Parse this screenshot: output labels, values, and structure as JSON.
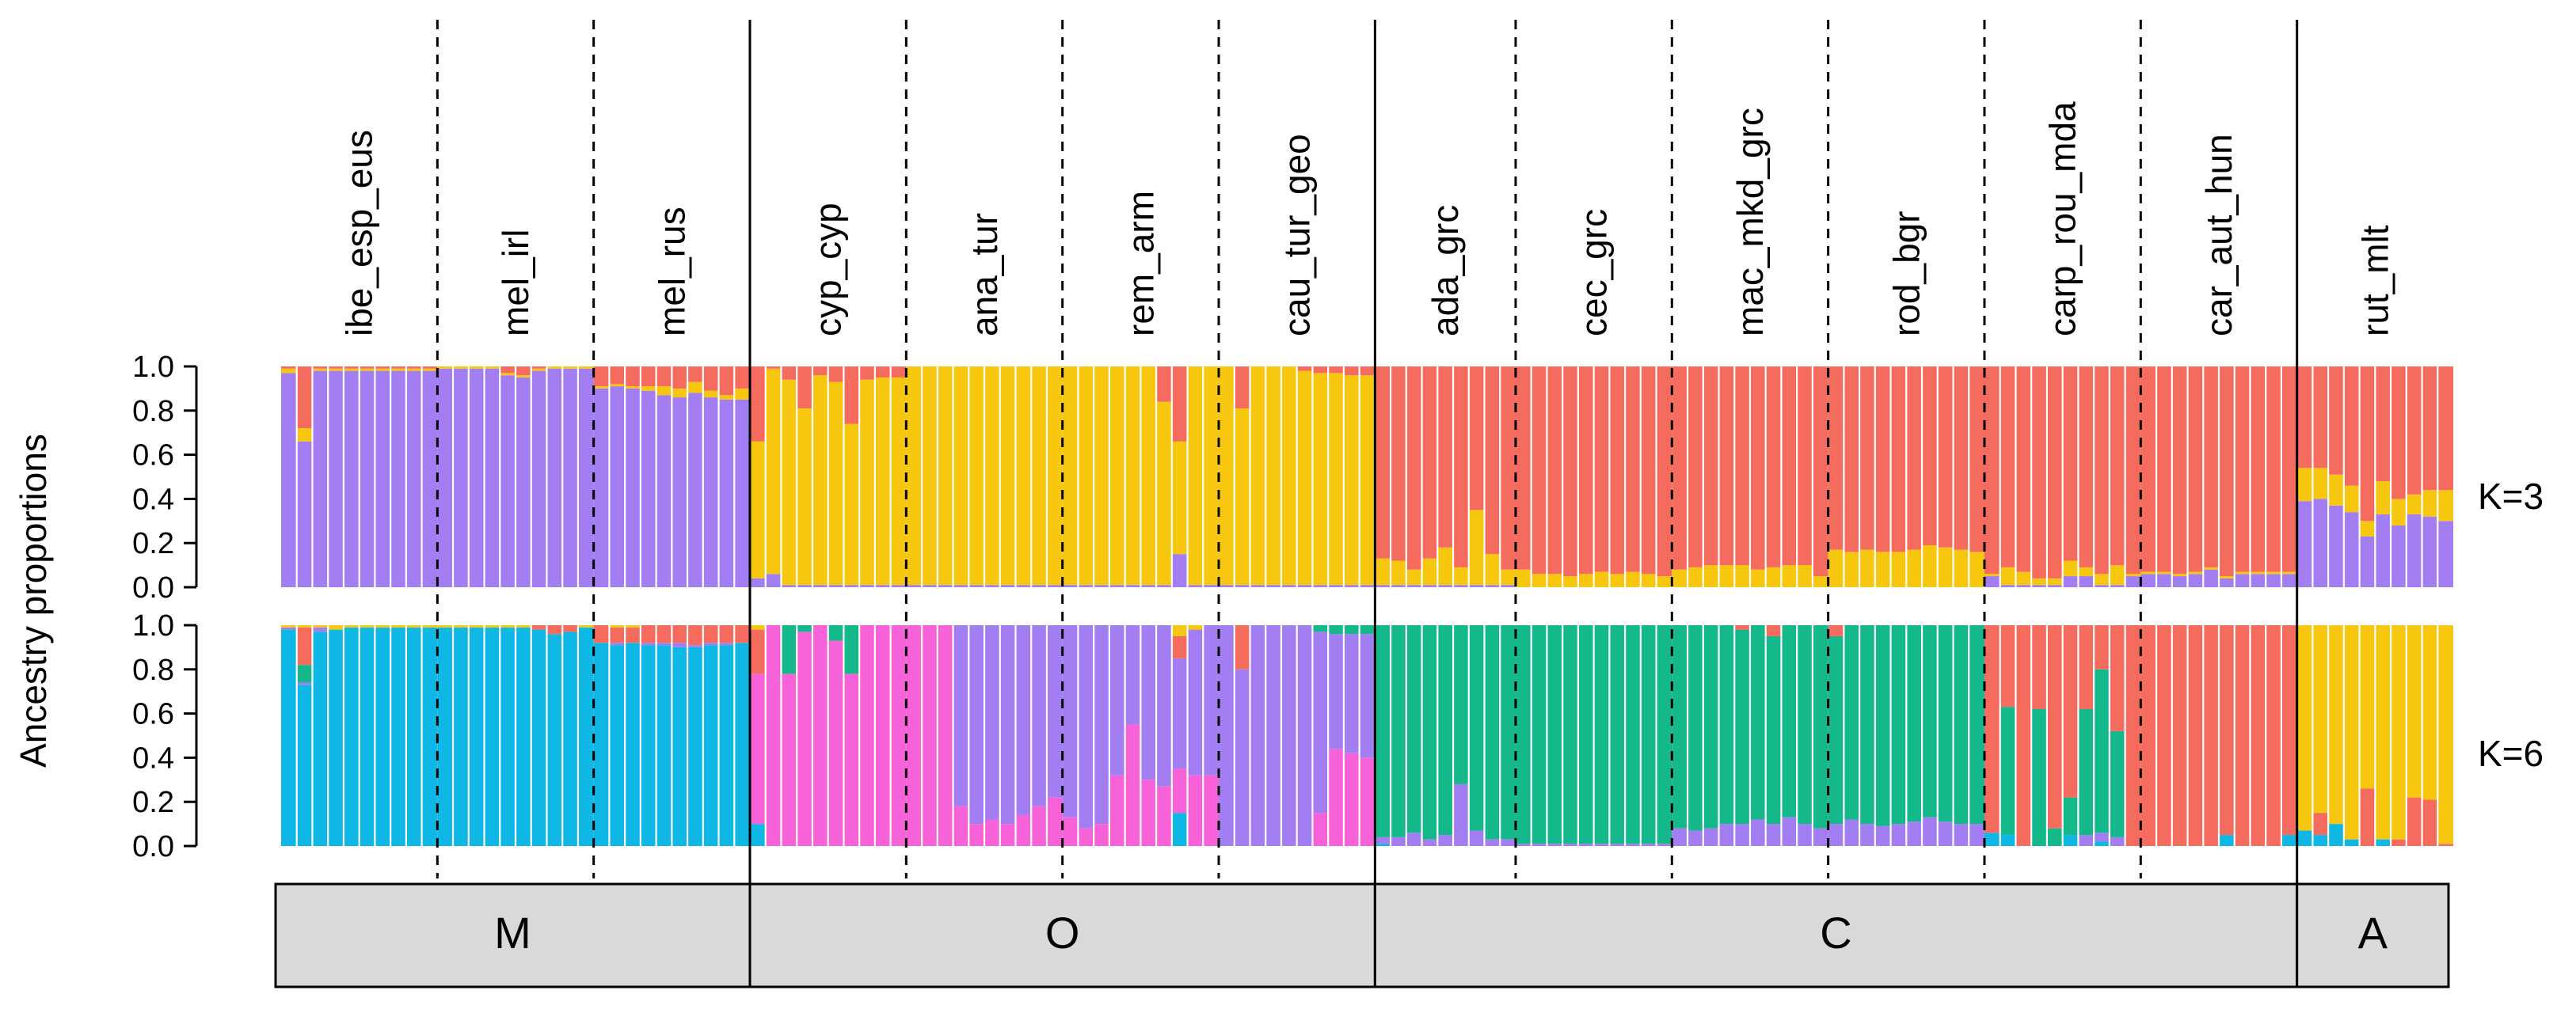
{
  "chart_data": {
    "type": "stacked-bar",
    "title": "",
    "ylabel": "Ancestry proportions",
    "ylim": [
      0,
      1
    ],
    "yticks": [
      "0.0",
      "0.2",
      "0.4",
      "0.6",
      "0.8",
      "1.0"
    ],
    "populations": [
      {
        "label": "ibe_esp_eus",
        "n": 10
      },
      {
        "label": "mel_irl",
        "n": 10
      },
      {
        "label": "mel_rus",
        "n": 10
      },
      {
        "label": "cyp_cyp",
        "n": 10
      },
      {
        "label": "ana_tur",
        "n": 10
      },
      {
        "label": "rem_arm",
        "n": 10
      },
      {
        "label": "cau_tur_geo",
        "n": 10
      },
      {
        "label": "ada_grc",
        "n": 9
      },
      {
        "label": "cec_grc",
        "n": 10
      },
      {
        "label": "mac_mkd_grc",
        "n": 10
      },
      {
        "label": "rod_bgr",
        "n": 10
      },
      {
        "label": "carp_rou_mda",
        "n": 10
      },
      {
        "label": "car_aut_hun",
        "n": 10
      },
      {
        "label": "rut_mlt",
        "n": 10
      }
    ],
    "groups": [
      {
        "label": "M",
        "populations": 3
      },
      {
        "label": "O",
        "populations": 4
      },
      {
        "label": "C",
        "populations": 6
      },
      {
        "label": "A",
        "populations": 1
      }
    ],
    "panels": [
      {
        "k_label": "K=3",
        "colors": {
          "west": "#a27ef2",
          "anatolian": "#f7c70f",
          "central": "#f56c5e"
        },
        "populations": [
          {
            "west": [
              0.97,
              0.66,
              0.98,
              0.98,
              0.98,
              0.98,
              0.98,
              0.98,
              0.98,
              0.98
            ],
            "anatolian": [
              0.02,
              0.06,
              0.01,
              0.01,
              0.01,
              0.01,
              0.01,
              0.01,
              0.01,
              0.01
            ]
          },
          {
            "west": [
              0.99,
              0.99,
              0.99,
              0.99,
              0.96,
              0.95,
              0.98,
              0.99,
              0.99,
              0.99
            ],
            "anatolian": [
              0.01,
              0.01,
              0.01,
              0.01,
              0.01,
              0.01,
              0.01,
              0.01,
              0.01,
              0.01
            ]
          },
          {
            "west": [
              0.9,
              0.91,
              0.9,
              0.89,
              0.87,
              0.86,
              0.88,
              0.86,
              0.85,
              0.85
            ],
            "anatolian": [
              0.01,
              0.01,
              0.01,
              0.02,
              0.04,
              0.04,
              0.05,
              0.03,
              0.02,
              0.05
            ]
          },
          {
            "west": [
              0.04,
              0.06,
              0.01,
              0.01,
              0.01,
              0.01,
              0.01,
              0.01,
              0.01,
              0.01
            ],
            "anatolian": [
              0.62,
              0.93,
              0.93,
              0.8,
              0.95,
              0.92,
              0.73,
              0.93,
              0.94,
              0.94
            ]
          },
          {
            "west": [
              0.01,
              0.01,
              0.01,
              0.01,
              0.01,
              0.01,
              0.01,
              0.01,
              0.01,
              0.01
            ],
            "anatolian": [
              0.99,
              0.99,
              0.99,
              0.99,
              0.99,
              0.99,
              0.99,
              0.99,
              0.99,
              0.99
            ]
          },
          {
            "west": [
              0.01,
              0.01,
              0.01,
              0.01,
              0.01,
              0.01,
              0.01,
              0.15,
              0.01,
              0.01
            ],
            "anatolian": [
              0.99,
              0.99,
              0.99,
              0.99,
              0.99,
              0.99,
              0.83,
              0.51,
              0.99,
              0.99
            ]
          },
          {
            "west": [
              0.01,
              0.01,
              0.01,
              0.01,
              0.01,
              0.01,
              0.01,
              0.01,
              0.01,
              0.01
            ],
            "anatolian": [
              0.99,
              0.8,
              0.99,
              0.99,
              0.99,
              0.97,
              0.96,
              0.96,
              0.95,
              0.95
            ]
          },
          {
            "west": [
              0.01,
              0.01,
              0.01,
              0.01,
              0.01,
              0.01,
              0.01,
              0.01,
              0.01
            ],
            "anatolian": [
              0.12,
              0.11,
              0.07,
              0.12,
              0.17,
              0.08,
              0.34,
              0.14,
              0.07
            ]
          },
          {
            "west": [
              0.0,
              0.0,
              0.0,
              0.0,
              0.0,
              0.0,
              0.0,
              0.0,
              0.0,
              0.0
            ],
            "anatolian": [
              0.08,
              0.06,
              0.06,
              0.05,
              0.06,
              0.07,
              0.06,
              0.07,
              0.06,
              0.05
            ]
          },
          {
            "west": [
              0.0,
              0.0,
              0.0,
              0.0,
              0.0,
              0.0,
              0.0,
              0.0,
              0.0,
              0.0
            ],
            "anatolian": [
              0.08,
              0.09,
              0.1,
              0.1,
              0.1,
              0.08,
              0.09,
              0.1,
              0.1,
              0.05
            ]
          },
          {
            "west": [
              0.0,
              0.0,
              0.0,
              0.0,
              0.0,
              0.0,
              0.0,
              0.0,
              0.0,
              0.0
            ],
            "anatolian": [
              0.17,
              0.16,
              0.17,
              0.16,
              0.16,
              0.17,
              0.19,
              0.18,
              0.17,
              0.16
            ]
          },
          {
            "west": [
              0.05,
              0.01,
              0.01,
              0.01,
              0.01,
              0.05,
              0.05,
              0.01,
              0.01,
              0.05
            ],
            "anatolian": [
              0.01,
              0.08,
              0.06,
              0.03,
              0.03,
              0.07,
              0.04,
              0.05,
              0.09,
              0.01
            ]
          },
          {
            "west": [
              0.06,
              0.06,
              0.05,
              0.06,
              0.08,
              0.04,
              0.06,
              0.06,
              0.06,
              0.06
            ],
            "anatolian": [
              0.01,
              0.01,
              0.01,
              0.01,
              0.01,
              0.01,
              0.01,
              0.01,
              0.01,
              0.01
            ]
          },
          {
            "west": [
              0.39,
              0.4,
              0.37,
              0.34,
              0.23,
              0.33,
              0.28,
              0.33,
              0.32,
              0.3
            ],
            "anatolian": [
              0.15,
              0.14,
              0.14,
              0.12,
              0.07,
              0.15,
              0.12,
              0.09,
              0.12,
              0.14
            ]
          }
        ]
      },
      {
        "k_label": "K=6",
        "colors": {
          "blue": "#0fb8e4",
          "pink": "#f862d8",
          "purple": "#a27ef2",
          "green": "#14b88b",
          "red": "#f56c5e",
          "gold": "#f7c70f"
        },
        "populations": [
          {
            "blue": [
              0.98,
              0.73,
              0.97,
              0.98,
              0.99,
              0.99,
              0.99,
              0.99,
              0.99,
              0.99
            ],
            "green": [
              0.0,
              0.08,
              0.0,
              0.0,
              0.0,
              0.0,
              0.0,
              0.0,
              0.0,
              0.0
            ],
            "red": [
              0.0,
              0.17,
              0.0,
              0.0,
              0.0,
              0.0,
              0.0,
              0.0,
              0.0,
              0.0
            ],
            "purple": [
              0.01,
              0.01,
              0.02,
              0.0,
              0.0,
              0.0,
              0.0,
              0.0,
              0.0,
              0.0
            ],
            "gold": [
              0.01,
              0.01,
              0.01,
              0.0,
              0.0,
              0.0,
              0.0,
              0.0,
              0.0,
              0.0
            ]
          },
          {
            "blue": [
              0.99,
              0.99,
              0.99,
              0.99,
              0.99,
              0.99,
              0.98,
              0.96,
              0.97,
              0.99
            ],
            "red": [
              0.0,
              0.0,
              0.0,
              0.0,
              0.0,
              0.0,
              0.02,
              0.04,
              0.03,
              0.0
            ]
          },
          {
            "blue": [
              0.92,
              0.91,
              0.92,
              0.91,
              0.91,
              0.9,
              0.9,
              0.91,
              0.91,
              0.92
            ],
            "red": [
              0.08,
              0.07,
              0.07,
              0.08,
              0.08,
              0.08,
              0.09,
              0.08,
              0.08,
              0.08
            ],
            "purple": [
              0.0,
              0.01,
              0.0,
              0.01,
              0.01,
              0.02,
              0.01,
              0.01,
              0.01,
              0.0
            ]
          },
          {
            "red": [
              0.2,
              0.0,
              0.0,
              0.0,
              0.0,
              0.0,
              0.0,
              0.0,
              0.0,
              0.0
            ],
            "blue": [
              0.1,
              0.0,
              0.0,
              0.0,
              0.0,
              0.0,
              0.0,
              0.0,
              0.0,
              0.0
            ],
            "gold": [
              0.02,
              0.0,
              0.0,
              0.0,
              0.0,
              0.0,
              0.0,
              0.0,
              0.0,
              0.0
            ],
            "green": [
              0.0,
              0.0,
              0.22,
              0.03,
              0.0,
              0.07,
              0.22,
              0.0,
              0.0,
              0.0
            ],
            "pink": [
              0.68,
              1.0,
              0.78,
              0.97,
              1.0,
              0.93,
              0.78,
              1.0,
              1.0,
              1.0
            ]
          },
          {
            "purple": [
              0.0,
              0.0,
              0.0,
              0.82,
              0.9,
              0.88,
              0.9,
              0.86,
              0.82,
              0.78
            ],
            "pink": [
              1.0,
              1.0,
              1.0,
              0.18,
              0.1,
              0.12,
              0.1,
              0.14,
              0.18,
              0.22
            ]
          },
          {
            "red": [
              0.0,
              0.0,
              0.0,
              0.0,
              0.0,
              0.0,
              0.0,
              0.1,
              0.0,
              0.0
            ],
            "blue": [
              0.0,
              0.0,
              0.0,
              0.0,
              0.0,
              0.0,
              0.0,
              0.15,
              0.0,
              0.0
            ],
            "gold": [
              0.0,
              0.0,
              0.0,
              0.0,
              0.0,
              0.0,
              0.0,
              0.05,
              0.02,
              0.0
            ],
            "purple": [
              0.87,
              0.92,
              0.9,
              0.68,
              0.45,
              0.7,
              0.73,
              0.5,
              0.66,
              0.68
            ],
            "pink": [
              0.13,
              0.08,
              0.1,
              0.32,
              0.55,
              0.3,
              0.27,
              0.2,
              0.32,
              0.32
            ]
          },
          {
            "red": [
              0.0,
              0.2,
              0.0,
              0.0,
              0.0,
              0.0,
              0.0,
              0.0,
              0.0,
              0.0
            ],
            "green": [
              0.0,
              0.0,
              0.0,
              0.0,
              0.0,
              0.0,
              0.03,
              0.04,
              0.04,
              0.04
            ],
            "purple": [
              1.0,
              0.8,
              1.0,
              1.0,
              1.0,
              1.0,
              0.82,
              0.52,
              0.54,
              0.56
            ],
            "pink": [
              0.0,
              0.0,
              0.0,
              0.0,
              0.0,
              0.0,
              0.15,
              0.44,
              0.42,
              0.4
            ]
          },
          {
            "green": [
              0.96,
              0.96,
              0.94,
              0.97,
              0.95,
              0.72,
              0.93,
              0.97,
              0.97
            ],
            "blue": [
              0.01,
              0.0,
              0.0,
              0.0,
              0.0,
              0.0,
              0.0,
              0.0,
              0.0
            ],
            "purple": [
              0.03,
              0.04,
              0.06,
              0.03,
              0.05,
              0.28,
              0.07,
              0.03,
              0.03
            ]
          },
          {
            "green": [
              0.99,
              0.99,
              0.99,
              0.99,
              0.99,
              0.99,
              0.99,
              0.99,
              0.99,
              0.99
            ],
            "purple": [
              0.01,
              0.01,
              0.01,
              0.01,
              0.01,
              0.01,
              0.01,
              0.01,
              0.01,
              0.01
            ]
          },
          {
            "red": [
              0.0,
              0.0,
              0.0,
              0.0,
              0.02,
              0.0,
              0.05,
              0.0,
              0.0,
              0.0
            ],
            "green": [
              0.92,
              0.93,
              0.92,
              0.9,
              0.88,
              0.88,
              0.85,
              0.87,
              0.9,
              0.92
            ],
            "purple": [
              0.08,
              0.07,
              0.08,
              0.1,
              0.1,
              0.12,
              0.1,
              0.13,
              0.1,
              0.08
            ]
          },
          {
            "red": [
              0.05,
              0.0,
              0.0,
              0.0,
              0.0,
              0.0,
              0.0,
              0.0,
              0.0,
              0.0
            ],
            "green": [
              0.85,
              0.88,
              0.9,
              0.91,
              0.9,
              0.89,
              0.87,
              0.89,
              0.9,
              0.9
            ],
            "purple": [
              0.1,
              0.12,
              0.1,
              0.09,
              0.1,
              0.11,
              0.13,
              0.11,
              0.1,
              0.1
            ]
          },
          {
            "red": [
              0.94,
              0.37,
              1.0,
              0.38,
              0.92,
              0.78,
              0.38,
              0.2,
              0.48,
              1.0
            ],
            "green": [
              0.0,
              0.58,
              0.0,
              0.62,
              0.08,
              0.17,
              0.57,
              0.74,
              0.48,
              0.0
            ],
            "blue": [
              0.06,
              0.05,
              0.0,
              0.0,
              0.0,
              0.05,
              0.0,
              0.02,
              0.0,
              0.0
            ],
            "purple": [
              0.0,
              0.0,
              0.0,
              0.0,
              0.0,
              0.0,
              0.05,
              0.04,
              0.04,
              0.0
            ]
          },
          {
            "red": [
              1.0,
              1.0,
              1.0,
              1.0,
              1.0,
              0.95,
              1.0,
              1.0,
              1.0,
              0.95
            ],
            "blue": [
              0.0,
              0.0,
              0.0,
              0.0,
              0.0,
              0.05,
              0.0,
              0.0,
              0.0,
              0.05
            ]
          },
          {
            "gold": [
              0.93,
              0.85,
              0.9,
              0.97,
              0.74,
              0.97,
              0.97,
              0.78,
              0.79,
              0.99
            ],
            "red": [
              0.0,
              0.1,
              0.0,
              0.0,
              0.26,
              0.0,
              0.03,
              0.22,
              0.21,
              0.01
            ],
            "blue": [
              0.07,
              0.05,
              0.1,
              0.03,
              0.0,
              0.03,
              0.0,
              0.0,
              0.0,
              0.0
            ]
          }
        ]
      }
    ]
  }
}
